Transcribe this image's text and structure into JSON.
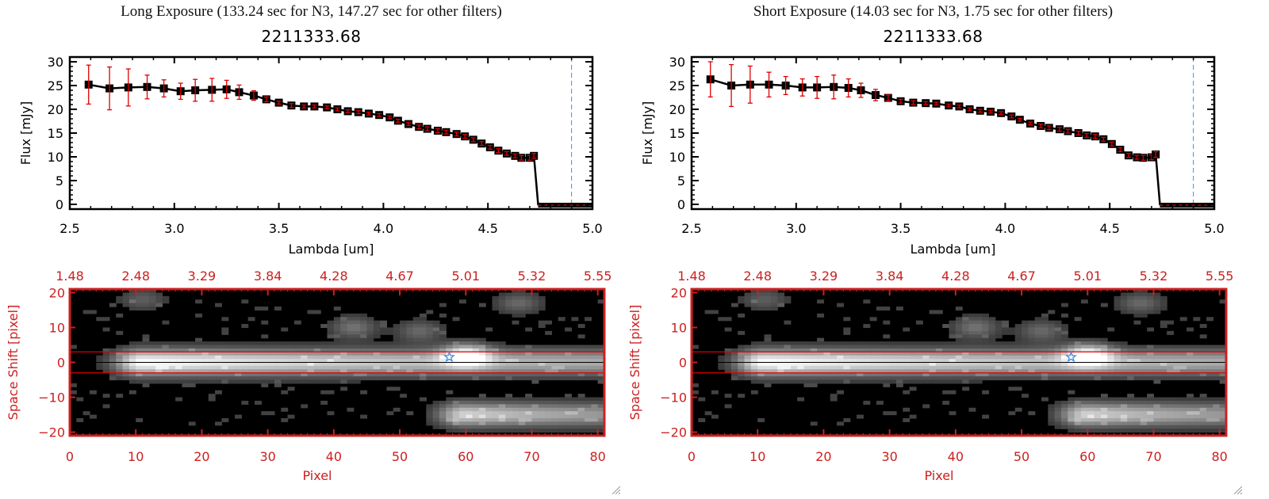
{
  "panels": [
    {
      "id": "long",
      "title": "Long Exposure (133.24 sec for N3, 147.27 sec for other filters)",
      "object_id": "2211333.68"
    },
    {
      "id": "short",
      "title": "Short Exposure (14.03 sec for N3, 1.75 sec for other filters)",
      "object_id": "2211333.68"
    }
  ],
  "colors": {
    "line": "#000000",
    "marker": "#000000",
    "errorbar": "#e00000",
    "image_axis": "#cc2020",
    "aperture_lines": "#e00000",
    "cutoff_line": "#3a8ee6",
    "star_marker": "#3a8ee6"
  },
  "chart_data": [
    {
      "type": "line",
      "panel": "long",
      "title": "2211333.68",
      "xlabel": "Lambda [um]",
      "ylabel": "Flux [mJy]",
      "xlim": [
        2.5,
        5.0
      ],
      "ylim": [
        -1,
        31
      ],
      "xticks": [
        "2.5",
        "3.0",
        "3.5",
        "4.0",
        "4.5",
        "5.0"
      ],
      "xtick_values": [
        2.5,
        3.0,
        3.5,
        4.0,
        4.5,
        5.0
      ],
      "yticks": [
        "0",
        "5",
        "10",
        "15",
        "20",
        "25",
        "30"
      ],
      "ytick_values": [
        0,
        5,
        10,
        15,
        20,
        25,
        30
      ],
      "grid": false,
      "cutoff_wavelength": 4.9,
      "series": [
        {
          "name": "Flux",
          "x": [
            2.59,
            2.69,
            2.78,
            2.87,
            2.95,
            3.03,
            3.1,
            3.18,
            3.25,
            3.31,
            3.38,
            3.44,
            3.5,
            3.56,
            3.62,
            3.67,
            3.73,
            3.78,
            3.83,
            3.88,
            3.93,
            3.98,
            4.03,
            4.07,
            4.12,
            4.17,
            4.21,
            4.26,
            4.3,
            4.35,
            4.39,
            4.43,
            4.47,
            4.51,
            4.55,
            4.59,
            4.63,
            4.66,
            4.7,
            4.72,
            4.74,
            4.78,
            4.82,
            4.86,
            4.9,
            4.94,
            4.98
          ],
          "y": [
            25.2,
            24.4,
            24.6,
            24.7,
            24.4,
            23.8,
            24.0,
            24.1,
            24.2,
            23.6,
            22.9,
            22.1,
            21.4,
            20.8,
            20.6,
            20.6,
            20.4,
            20.0,
            19.6,
            19.4,
            19.1,
            18.8,
            18.3,
            17.6,
            16.9,
            16.3,
            15.9,
            15.5,
            15.2,
            14.8,
            14.3,
            13.6,
            12.8,
            12.0,
            11.3,
            10.7,
            10.2,
            9.8,
            9.8,
            10.2,
            0,
            0,
            0,
            0,
            0,
            0,
            0
          ],
          "err": [
            4.1,
            4.5,
            3.9,
            2.5,
            1.8,
            1.7,
            2.3,
            2.4,
            1.9,
            1.5,
            1.0,
            0.5,
            0.3,
            0.4,
            0.3,
            0.3,
            0.3,
            0.3,
            0.3,
            0.3,
            0.3,
            0.3,
            0.3,
            0.3,
            0.3,
            0.4,
            0.4,
            0.4,
            0.4,
            0.4,
            0.4,
            0.4,
            0.4,
            0.4,
            0.4,
            0.4,
            0.4,
            0.5,
            0.5,
            0.5,
            0,
            0,
            0,
            0,
            0,
            0,
            0
          ]
        }
      ]
    },
    {
      "type": "line",
      "panel": "short",
      "title": "2211333.68",
      "xlabel": "Lambda [um]",
      "ylabel": "Flux [mJy]",
      "xlim": [
        2.5,
        5.0
      ],
      "ylim": [
        -1,
        31
      ],
      "xticks": [
        "2.5",
        "3.0",
        "3.5",
        "4.0",
        "4.5",
        "5.0"
      ],
      "xtick_values": [
        2.5,
        3.0,
        3.5,
        4.0,
        4.5,
        5.0
      ],
      "yticks": [
        "0",
        "5",
        "10",
        "15",
        "20",
        "25",
        "30"
      ],
      "ytick_values": [
        0,
        5,
        10,
        15,
        20,
        25,
        30
      ],
      "grid": false,
      "cutoff_wavelength": 4.9,
      "series": [
        {
          "name": "Flux",
          "x": [
            2.59,
            2.69,
            2.78,
            2.87,
            2.95,
            3.03,
            3.1,
            3.18,
            3.25,
            3.31,
            3.38,
            3.44,
            3.5,
            3.56,
            3.62,
            3.67,
            3.73,
            3.78,
            3.83,
            3.88,
            3.93,
            3.98,
            4.03,
            4.07,
            4.12,
            4.17,
            4.21,
            4.26,
            4.3,
            4.35,
            4.39,
            4.43,
            4.47,
            4.51,
            4.55,
            4.59,
            4.63,
            4.66,
            4.7,
            4.72,
            4.74,
            4.78,
            4.82,
            4.86,
            4.9,
            4.94,
            4.98
          ],
          "y": [
            26.3,
            25.0,
            25.2,
            25.2,
            25.0,
            24.6,
            24.6,
            24.7,
            24.5,
            24.0,
            23.0,
            22.4,
            21.7,
            21.4,
            21.3,
            21.2,
            20.8,
            20.6,
            20.0,
            19.7,
            19.5,
            19.2,
            18.5,
            17.8,
            17.0,
            16.5,
            16.1,
            15.8,
            15.4,
            15.0,
            14.5,
            14.3,
            13.7,
            12.7,
            11.5,
            10.3,
            9.9,
            9.8,
            9.9,
            10.5,
            0,
            0,
            0,
            0,
            0,
            0,
            0
          ],
          "err": [
            3.7,
            4.4,
            3.9,
            2.6,
            1.9,
            1.8,
            2.3,
            2.5,
            1.9,
            1.5,
            1.2,
            0.6,
            0.4,
            0.4,
            0.3,
            0.3,
            0.3,
            0.3,
            0.3,
            0.3,
            0.3,
            0.3,
            0.3,
            0.3,
            0.3,
            0.4,
            0.4,
            0.4,
            0.4,
            0.4,
            0.4,
            0.4,
            0.4,
            0.4,
            0.4,
            0.4,
            0.4,
            0.5,
            0.5,
            0.6,
            0,
            0,
            0,
            0,
            0,
            0,
            0
          ]
        }
      ]
    },
    {
      "type": "heatmap",
      "panel": "long",
      "xlabel": "Pixel",
      "ylabel": "Space Shift [pixel]",
      "xlim": [
        0,
        81
      ],
      "ylim": [
        -21,
        21
      ],
      "xticks": [
        "0",
        "10",
        "20",
        "30",
        "40",
        "50",
        "60",
        "70",
        "80"
      ],
      "xtick_values": [
        0,
        10,
        20,
        30,
        40,
        50,
        60,
        70,
        80
      ],
      "top_ticks": [
        "1.48",
        "2.48",
        "3.29",
        "3.84",
        "4.28",
        "4.67",
        "5.01",
        "5.32",
        "5.55"
      ],
      "yticks": [
        "-20",
        "-10",
        "0",
        "10",
        "20"
      ],
      "ytick_values": [
        -20,
        -10,
        0,
        10,
        20
      ],
      "aperture": [
        -3,
        3
      ],
      "center_line": 0,
      "star_marker": {
        "x": 57.5,
        "y": 1.5
      },
      "features": [
        {
          "label": "main trace",
          "x0": 3,
          "x1": 81,
          "y": 0,
          "peak_x": 11,
          "peak": 1.0
        },
        {
          "label": "secondary blob",
          "x": 60,
          "y": 2,
          "peak": 0.8
        },
        {
          "label": "lower trace",
          "x0": 51,
          "x1": 81,
          "y": -15,
          "peak_x": 60,
          "peak": 0.8
        },
        {
          "label": "blob",
          "x": 43,
          "y": 10,
          "peak": 0.35
        },
        {
          "label": "blob",
          "x": 53,
          "y": 9,
          "peak": 0.3
        },
        {
          "label": "blob",
          "x": 68,
          "y": 17,
          "peak": 0.3
        },
        {
          "label": "blob",
          "x": 11,
          "y": 18,
          "peak": 0.25
        }
      ]
    },
    {
      "type": "heatmap",
      "panel": "short",
      "xlabel": "Pixel",
      "ylabel": "Space Shift [pixel]",
      "xlim": [
        0,
        81
      ],
      "ylim": [
        -21,
        21
      ],
      "xticks": [
        "0",
        "10",
        "20",
        "30",
        "40",
        "50",
        "60",
        "70",
        "80"
      ],
      "xtick_values": [
        0,
        10,
        20,
        30,
        40,
        50,
        60,
        70,
        80
      ],
      "top_ticks": [
        "1.48",
        "2.48",
        "3.29",
        "3.84",
        "4.28",
        "4.67",
        "5.01",
        "5.32",
        "5.55"
      ],
      "yticks": [
        "-20",
        "-10",
        "0",
        "10",
        "20"
      ],
      "ytick_values": [
        -20,
        -10,
        0,
        10,
        20
      ],
      "aperture": [
        -3,
        3
      ],
      "center_line": 0,
      "star_marker": {
        "x": 57.5,
        "y": 1.5
      },
      "features": [
        {
          "label": "main trace",
          "x0": 3,
          "x1": 81,
          "y": 0,
          "peak_x": 11,
          "peak": 1.0
        },
        {
          "label": "secondary blob",
          "x": 60,
          "y": 2,
          "peak": 0.8
        },
        {
          "label": "lower trace",
          "x0": 51,
          "x1": 81,
          "y": -15,
          "peak_x": 60,
          "peak": 0.8
        },
        {
          "label": "blob",
          "x": 43,
          "y": 10,
          "peak": 0.35
        },
        {
          "label": "blob",
          "x": 53,
          "y": 9,
          "peak": 0.3
        },
        {
          "label": "blob",
          "x": 68,
          "y": 17,
          "peak": 0.3
        },
        {
          "label": "blob",
          "x": 11,
          "y": 18,
          "peak": 0.25
        }
      ]
    }
  ]
}
